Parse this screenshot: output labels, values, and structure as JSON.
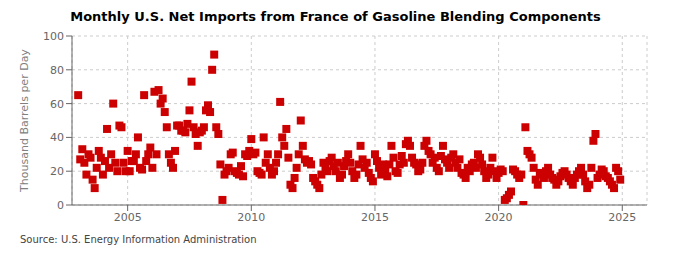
{
  "chart_data": {
    "type": "scatter",
    "title": "Monthly U.S. Net Imports from France of Gasoline Blending Components",
    "y_label": "Thousand Barrels per Day",
    "annotations": [
      "Source: U.S. Energy Information Administration"
    ],
    "color": "#cc0000",
    "marker": "square",
    "grid": true,
    "xlim": [
      2002.75,
      2026.0
    ],
    "xticks": [
      2005,
      2010,
      2015,
      2020,
      2025
    ],
    "ylim": [
      0,
      100
    ],
    "yticks": [
      0,
      20,
      40,
      60,
      80,
      100
    ],
    "x": [
      2003.0,
      2003.083,
      2003.167,
      2003.25,
      2003.333,
      2003.417,
      2003.5,
      2003.583,
      2003.667,
      2003.75,
      2003.833,
      2003.917,
      2004.0,
      2004.083,
      2004.167,
      2004.25,
      2004.333,
      2004.417,
      2004.5,
      2004.583,
      2004.667,
      2004.75,
      2004.833,
      2004.917,
      2005.0,
      2005.083,
      2005.167,
      2005.25,
      2005.333,
      2005.417,
      2005.5,
      2005.583,
      2005.667,
      2005.75,
      2005.833,
      2005.917,
      2006.0,
      2006.083,
      2006.167,
      2006.25,
      2006.333,
      2006.417,
      2006.5,
      2006.583,
      2006.667,
      2006.75,
      2006.833,
      2006.917,
      2007.0,
      2007.083,
      2007.167,
      2007.25,
      2007.333,
      2007.417,
      2007.5,
      2007.583,
      2007.667,
      2007.75,
      2007.833,
      2007.917,
      2008.0,
      2008.083,
      2008.167,
      2008.25,
      2008.333,
      2008.417,
      2008.5,
      2008.583,
      2008.667,
      2008.75,
      2008.833,
      2008.917,
      2009.0,
      2009.083,
      2009.167,
      2009.25,
      2009.333,
      2009.417,
      2009.5,
      2009.583,
      2009.667,
      2009.75,
      2009.833,
      2009.917,
      2010.0,
      2010.083,
      2010.167,
      2010.25,
      2010.333,
      2010.417,
      2010.5,
      2010.583,
      2010.667,
      2010.75,
      2010.833,
      2010.917,
      2011.0,
      2011.083,
      2011.167,
      2011.25,
      2011.333,
      2011.417,
      2011.5,
      2011.583,
      2011.667,
      2011.75,
      2011.833,
      2011.917,
      2012.0,
      2012.083,
      2012.167,
      2012.25,
      2012.333,
      2012.417,
      2012.5,
      2012.583,
      2012.667,
      2012.75,
      2012.833,
      2012.917,
      2013.0,
      2013.083,
      2013.167,
      2013.25,
      2013.333,
      2013.417,
      2013.5,
      2013.583,
      2013.667,
      2013.75,
      2013.833,
      2013.917,
      2014.0,
      2014.083,
      2014.167,
      2014.25,
      2014.333,
      2014.417,
      2014.5,
      2014.583,
      2014.667,
      2014.75,
      2014.833,
      2014.917,
      2015.0,
      2015.083,
      2015.167,
      2015.25,
      2015.333,
      2015.417,
      2015.5,
      2015.583,
      2015.667,
      2015.75,
      2015.833,
      2015.917,
      2016.0,
      2016.083,
      2016.167,
      2016.25,
      2016.333,
      2016.417,
      2016.5,
      2016.583,
      2016.667,
      2016.75,
      2016.833,
      2016.917,
      2017.0,
      2017.083,
      2017.167,
      2017.25,
      2017.333,
      2017.417,
      2017.5,
      2017.583,
      2017.667,
      2017.75,
      2017.833,
      2017.917,
      2018.0,
      2018.083,
      2018.167,
      2018.25,
      2018.333,
      2018.417,
      2018.5,
      2018.583,
      2018.667,
      2018.75,
      2018.833,
      2018.917,
      2019.0,
      2019.083,
      2019.167,
      2019.25,
      2019.333,
      2019.417,
      2019.5,
      2019.583,
      2019.667,
      2019.75,
      2019.833,
      2019.917,
      2020.0,
      2020.083,
      2020.167,
      2020.25,
      2020.333,
      2020.417,
      2020.5,
      2020.583,
      2020.667,
      2020.75,
      2020.833,
      2020.917,
      2021.0,
      2021.083,
      2021.167,
      2021.25,
      2021.333,
      2021.417,
      2021.5,
      2021.583,
      2021.667,
      2021.75,
      2021.833,
      2021.917,
      2022.0,
      2022.083,
      2022.167,
      2022.25,
      2022.333,
      2022.417,
      2022.5,
      2022.583,
      2022.667,
      2022.75,
      2022.833,
      2022.917,
      2023.0,
      2023.083,
      2023.167,
      2023.25,
      2023.333,
      2023.417,
      2023.5,
      2023.583,
      2023.667,
      2023.75,
      2023.833,
      2023.917,
      2024.0,
      2024.083,
      2024.167,
      2024.25,
      2024.333,
      2024.417,
      2024.5,
      2024.583,
      2024.667,
      2024.75,
      2024.833,
      2024.917
    ],
    "values": [
      65,
      27,
      33,
      25,
      18,
      30,
      28,
      15,
      10,
      22,
      32,
      28,
      18,
      26,
      45,
      22,
      30,
      60,
      25,
      20,
      47,
      46,
      25,
      20,
      32,
      20,
      26,
      26,
      30,
      40,
      22,
      21,
      65,
      26,
      30,
      34,
      22,
      67,
      30,
      68,
      60,
      63,
      55,
      46,
      30,
      25,
      22,
      32,
      47,
      47,
      44,
      44,
      43,
      48,
      56,
      73,
      46,
      42,
      35,
      43,
      44,
      46,
      56,
      59,
      55,
      80,
      89,
      46,
      42,
      24,
      3,
      18,
      20,
      22,
      30,
      31,
      20,
      19,
      18,
      23,
      17,
      30,
      29,
      32,
      39,
      30,
      31,
      20,
      19,
      18,
      40,
      25,
      30,
      22,
      18,
      20,
      25,
      30,
      61,
      40,
      35,
      45,
      28,
      12,
      10,
      16,
      22,
      30,
      50,
      35,
      27,
      25,
      26,
      24,
      16,
      14,
      12,
      10,
      18,
      25,
      22,
      20,
      26,
      28,
      23,
      20,
      25,
      16,
      18,
      23,
      26,
      30,
      25,
      20,
      16,
      18,
      24,
      35,
      27,
      22,
      25,
      19,
      16,
      14,
      30,
      26,
      22,
      18,
      24,
      20,
      17,
      24,
      35,
      28,
      20,
      19,
      24,
      29,
      25,
      36,
      38,
      35,
      28,
      25,
      24,
      20,
      21,
      25,
      35,
      38,
      32,
      30,
      25,
      28,
      22,
      20,
      29,
      35,
      27,
      25,
      22,
      28,
      30,
      25,
      22,
      27,
      19,
      18,
      16,
      22,
      20,
      24,
      25,
      22,
      30,
      28,
      24,
      20,
      16,
      18,
      22,
      28,
      20,
      16,
      19,
      21,
      20,
      3,
      4,
      6,
      8,
      21,
      20,
      18,
      16,
      18,
      0,
      46,
      32,
      30,
      28,
      22,
      15,
      12,
      19,
      18,
      16,
      20,
      22,
      18,
      16,
      15,
      12,
      14,
      17,
      19,
      20,
      18,
      16,
      14,
      12,
      16,
      18,
      20,
      22,
      18,
      14,
      10,
      12,
      22,
      38,
      42,
      16,
      18,
      21,
      20,
      17,
      16,
      14,
      12,
      10,
      22,
      20,
      15
    ]
  }
}
